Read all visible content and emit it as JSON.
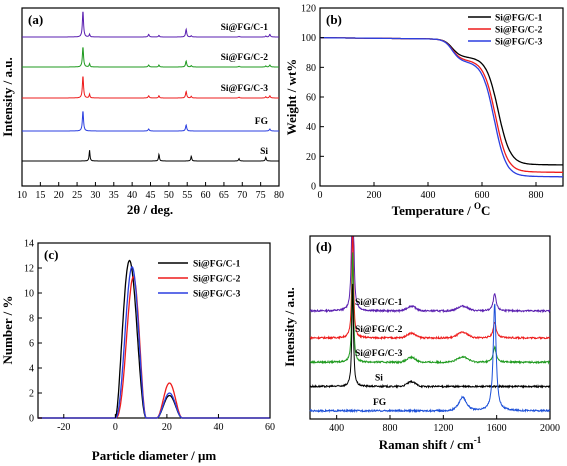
{
  "colors": {
    "black": "#000000",
    "red": "#ee1c1c",
    "blue": "#2b3fe0",
    "green": "#1f9a1f",
    "purple": "#5a1fb0",
    "fg_blue": "#1b4fd8"
  },
  "chart_data": [
    {
      "id": "a",
      "type": "line",
      "panel_label": "(a)",
      "xlabel": "2θ / deg.",
      "ylabel": "Intensity / a.u.",
      "xlim": [
        10,
        80
      ],
      "xticks": [
        "10",
        "15",
        "20",
        "25",
        "30",
        "35",
        "40",
        "45",
        "50",
        "55",
        "60",
        "65",
        "70",
        "75",
        "80"
      ],
      "yticks_shown": false,
      "peaks": {
        "Si": [
          [
            28.4,
            0.9
          ],
          [
            47.3,
            0.55
          ],
          [
            56.1,
            0.4
          ],
          [
            69.1,
            0.2
          ],
          [
            76.4,
            0.3
          ]
        ],
        "FG": [
          [
            26.6,
            1.0
          ],
          [
            44.5,
            0.1
          ],
          [
            54.7,
            0.3
          ],
          [
            77.5,
            0.1
          ]
        ]
      },
      "series": [
        {
          "name": "Si@FG/C-1",
          "color": "purple",
          "offset": 5,
          "fg": 1.0,
          "si": 0.25,
          "fg_height": 26,
          "label": "Si@FG/C-1"
        },
        {
          "name": "Si@FG/C-2",
          "color": "green",
          "offset": 4,
          "fg": 1.0,
          "si": 0.3,
          "fg_height": 20,
          "label": "Si@FG/C-2"
        },
        {
          "name": "Si@FG/C-3",
          "color": "red",
          "offset": 3,
          "fg": 1.0,
          "si": 0.35,
          "fg_height": 22,
          "label": "Si@FG/C-3"
        },
        {
          "name": "FG",
          "color": "blue",
          "offset": 2,
          "fg": 1.0,
          "si": 0.0,
          "fg_height": 20,
          "label": "FG"
        },
        {
          "name": "Si",
          "color": "black",
          "offset": 1,
          "fg": 0.0,
          "si": 1.0,
          "fg_height": 10,
          "label": "Si"
        }
      ]
    },
    {
      "id": "b",
      "type": "line",
      "panel_label": "(b)",
      "xlabel": "Temperature / ",
      "xlabel_unit": "C",
      "xlabel_sup": "O",
      "ylabel": "Weight / wt%",
      "xlim": [
        0,
        900
      ],
      "ylim": [
        0,
        120
      ],
      "xticks": [
        "0",
        "200",
        "400",
        "600",
        "800"
      ],
      "yticks": [
        "0",
        "20",
        "40",
        "60",
        "80",
        "100",
        "120"
      ],
      "legend_position": "top-right",
      "series": [
        {
          "name": "Si@FG/C-1",
          "color": "black",
          "onset": 680,
          "residual": 16,
          "step": 88
        },
        {
          "name": "Si@FG/C-2",
          "color": "red",
          "onset": 670,
          "residual": 11,
          "step": 86
        },
        {
          "name": "Si@FG/C-3",
          "color": "blue",
          "onset": 665,
          "residual": 8,
          "step": 85
        }
      ]
    },
    {
      "id": "c",
      "type": "line",
      "panel_label": "(c)",
      "xlabel": "Particle diameter / μm",
      "ylabel": "Number / %",
      "xlim": [
        -30,
        60
      ],
      "ylim": [
        0,
        14
      ],
      "xticks": [
        "-20",
        "0",
        "20",
        "40",
        "60"
      ],
      "yticks": [
        "0",
        "2",
        "4",
        "6",
        "8",
        "10",
        "12",
        "14"
      ],
      "legend_position": "top-right",
      "series": [
        {
          "name": "Si@FG/C-1",
          "color": "black",
          "peak1_x": 5.5,
          "peak1_y": 12.6,
          "peak2_x": 21,
          "peak2_y": 1.8
        },
        {
          "name": "Si@FG/C-2",
          "color": "red",
          "peak1_x": 7,
          "peak1_y": 11.3,
          "peak2_x": 22,
          "peak2_y": 2.8
        },
        {
          "name": "Si@FG/C-3",
          "color": "blue",
          "peak1_x": 6.5,
          "peak1_y": 12.1,
          "peak2_x": 21.5,
          "peak2_y": 2.0
        }
      ]
    },
    {
      "id": "d",
      "type": "line",
      "panel_label": "(d)",
      "xlabel": "Raman shift / cm",
      "xlabel_sup": "-1",
      "ylabel": "Intensity / a.u.",
      "xlim": [
        200,
        2000
      ],
      "xticks": [
        "400",
        "800",
        "1200",
        "1600",
        "2000"
      ],
      "yticks_shown": false,
      "series": [
        {
          "name": "Si@FG/C-1",
          "color": "purple",
          "label": "Si@FG/C-1",
          "base": 8.6,
          "si": 1.0,
          "d": 0.35,
          "g": 0.9
        },
        {
          "name": "Si@FG/C-2",
          "color": "red",
          "label": "Si@FG/C-2",
          "base": 6.6,
          "si": 1.0,
          "d": 0.4,
          "g": 0.85
        },
        {
          "name": "Si@FG/C-3",
          "color": "green",
          "label": "Si@FG/C-3",
          "base": 4.8,
          "si": 1.0,
          "d": 0.4,
          "g": 0.8
        },
        {
          "name": "Si",
          "color": "black",
          "label": "Si",
          "base": 3.0,
          "si": 1.0,
          "d": 0.0,
          "g": 0.0
        },
        {
          "name": "FG",
          "color": "fg_blue",
          "label": "FG",
          "base": 1.2,
          "si": 0.0,
          "d": 0.6,
          "g": 2.4
        }
      ]
    }
  ]
}
